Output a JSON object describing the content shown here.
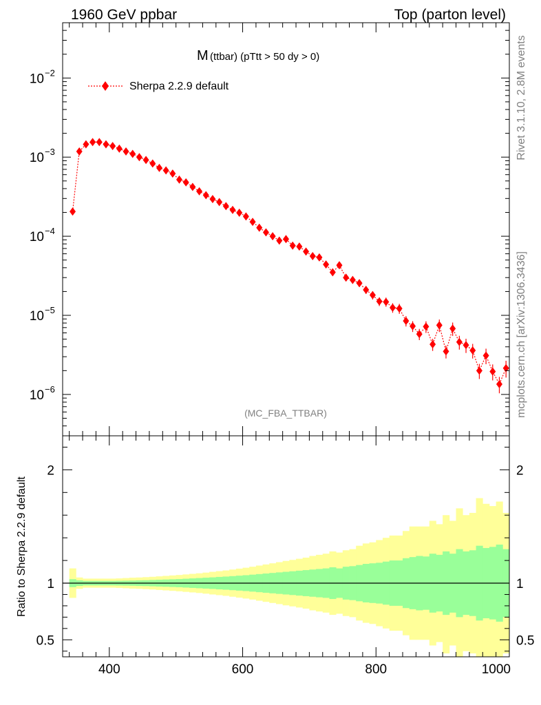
{
  "header": {
    "left": "1960 GeV ppbar",
    "right": "Top (parton level)"
  },
  "side_labels": {
    "rivet": "Rivet 3.1.10,  2.8M events",
    "mcplots": "mcplots.cern.ch [arXiv:1306.3436]"
  },
  "colors": {
    "series": "#ff0000",
    "band_inner": "#99ff99",
    "band_outer": "#ffff99",
    "axis": "#000000",
    "watermark": "#808080"
  },
  "chart_data": [
    {
      "type": "scatter",
      "title_main": "M",
      "title_sub": "(ttbar) (pTtt > 50 dy > 0)",
      "watermark": "(MC_FBA_TTBAR)",
      "xlim": [
        330,
        1000
      ],
      "ylim": [
        3e-07,
        0.05
      ],
      "yscale": "log",
      "legend_position": "top-left",
      "ytick_labels": [
        {
          "value": 1e-06,
          "base": "10",
          "exp": "−6"
        },
        {
          "value": 1e-05,
          "base": "10",
          "exp": "−5"
        },
        {
          "value": 0.0001,
          "base": "10",
          "exp": "−4"
        },
        {
          "value": 0.001,
          "base": "10",
          "exp": "−3"
        },
        {
          "value": 0.01,
          "base": "10",
          "exp": "−2"
        }
      ],
      "series": [
        {
          "name": "Sherpa 2.2.9 default",
          "x": [
            345,
            355,
            365,
            375,
            385,
            395,
            405,
            415,
            425,
            435,
            445,
            455,
            465,
            475,
            485,
            495,
            505,
            515,
            525,
            535,
            545,
            555,
            565,
            575,
            585,
            595,
            605,
            615,
            625,
            635,
            645,
            655,
            665,
            675,
            685,
            695,
            705,
            715,
            725,
            735,
            745,
            755,
            765,
            775,
            785,
            795,
            805,
            815,
            825,
            835,
            845,
            855,
            865,
            875,
            885,
            895,
            905,
            915,
            925,
            935,
            945,
            955,
            965,
            975,
            985,
            995
          ],
          "y": [
            0.000205,
            0.00118,
            0.00145,
            0.00155,
            0.00155,
            0.00145,
            0.00138,
            0.00128,
            0.00118,
            0.0011,
            0.001,
            0.00092,
            0.00083,
            0.00073,
            0.00068,
            0.00062,
            0.00052,
            0.00048,
            0.00042,
            0.00037,
            0.00033,
            0.000295,
            0.00027,
            0.00024,
            0.000215,
            0.000198,
            0.000178,
            0.000152,
            0.000128,
            0.000112,
            0.0001,
            8.8e-05,
            9.2e-05,
            7.6e-05,
            7.4e-05,
            6.4e-05,
            5.6e-05,
            5.4e-05,
            4.4e-05,
            3.5e-05,
            4.3e-05,
            3e-05,
            2.8e-05,
            2.55e-05,
            2.1e-05,
            1.8e-05,
            1.5e-05,
            1.48e-05,
            1.25e-05,
            1.22e-05,
            8.5e-06,
            7.3e-06,
            5.8e-06,
            7.2e-06,
            4.3e-06,
            7.5e-06,
            3.5e-06,
            6.8e-06,
            4.6e-06,
            4.2e-06,
            3.6e-06,
            2e-06,
            3.1e-06,
            1.95e-06,
            1.35e-06,
            2.15e-06
          ]
        }
      ]
    },
    {
      "type": "area",
      "ylabel": "Ratio to Sherpa 2.2.9 default",
      "xlim": [
        330,
        1000
      ],
      "ylim": [
        0.35,
        2.3
      ],
      "xticks": [
        400,
        600,
        800,
        1000
      ],
      "yticks": [
        0.5,
        1,
        2
      ],
      "reference_line": 1,
      "bins": [
        340,
        350,
        360,
        370,
        380,
        390,
        400,
        410,
        420,
        430,
        440,
        450,
        460,
        470,
        480,
        490,
        500,
        510,
        520,
        530,
        540,
        550,
        560,
        570,
        580,
        590,
        600,
        610,
        620,
        630,
        640,
        650,
        660,
        670,
        680,
        690,
        700,
        710,
        720,
        730,
        740,
        750,
        760,
        770,
        780,
        790,
        800,
        810,
        820,
        830,
        840,
        850,
        860,
        870,
        880,
        890,
        900,
        910,
        920,
        930,
        940,
        950,
        960,
        970,
        980,
        990,
        1000
      ],
      "inner_band_halfwidth": [
        0.035,
        0.025,
        0.02,
        0.02,
        0.02,
        0.02,
        0.02,
        0.021,
        0.022,
        0.023,
        0.025,
        0.026,
        0.028,
        0.03,
        0.032,
        0.034,
        0.036,
        0.039,
        0.042,
        0.045,
        0.048,
        0.051,
        0.055,
        0.058,
        0.062,
        0.066,
        0.07,
        0.075,
        0.08,
        0.085,
        0.09,
        0.095,
        0.1,
        0.105,
        0.11,
        0.115,
        0.12,
        0.125,
        0.13,
        0.14,
        0.13,
        0.145,
        0.15,
        0.16,
        0.17,
        0.175,
        0.18,
        0.19,
        0.2,
        0.2,
        0.22,
        0.23,
        0.24,
        0.235,
        0.26,
        0.25,
        0.28,
        0.26,
        0.3,
        0.28,
        0.29,
        0.33,
        0.31,
        0.32,
        0.34,
        0.3
      ],
      "outer_band_up": [
        0.13,
        0.05,
        0.04,
        0.04,
        0.04,
        0.04,
        0.04,
        0.042,
        0.045,
        0.048,
        0.05,
        0.053,
        0.056,
        0.06,
        0.064,
        0.068,
        0.072,
        0.077,
        0.082,
        0.087,
        0.093,
        0.1,
        0.106,
        0.112,
        0.12,
        0.128,
        0.136,
        0.145,
        0.155,
        0.165,
        0.175,
        0.185,
        0.196,
        0.205,
        0.215,
        0.225,
        0.24,
        0.25,
        0.26,
        0.28,
        0.27,
        0.29,
        0.3,
        0.33,
        0.35,
        0.36,
        0.38,
        0.4,
        0.42,
        0.42,
        0.46,
        0.5,
        0.5,
        0.5,
        0.55,
        0.52,
        0.6,
        0.55,
        0.66,
        0.6,
        0.62,
        0.75,
        0.7,
        0.68,
        0.72,
        0.62
      ],
      "outer_band_down": [
        0.13,
        0.05,
        0.04,
        0.04,
        0.04,
        0.04,
        0.04,
        0.042,
        0.045,
        0.048,
        0.05,
        0.053,
        0.056,
        0.06,
        0.064,
        0.068,
        0.072,
        0.077,
        0.082,
        0.087,
        0.093,
        0.1,
        0.106,
        0.112,
        0.12,
        0.128,
        0.136,
        0.145,
        0.155,
        0.165,
        0.175,
        0.185,
        0.196,
        0.205,
        0.215,
        0.225,
        0.24,
        0.25,
        0.26,
        0.28,
        0.27,
        0.29,
        0.3,
        0.33,
        0.35,
        0.36,
        0.38,
        0.4,
        0.42,
        0.42,
        0.46,
        0.5,
        0.5,
        0.5,
        0.55,
        0.52,
        0.62,
        0.55,
        0.72,
        0.6,
        0.62,
        0.8,
        0.7,
        0.68,
        0.72,
        0.62
      ]
    }
  ]
}
